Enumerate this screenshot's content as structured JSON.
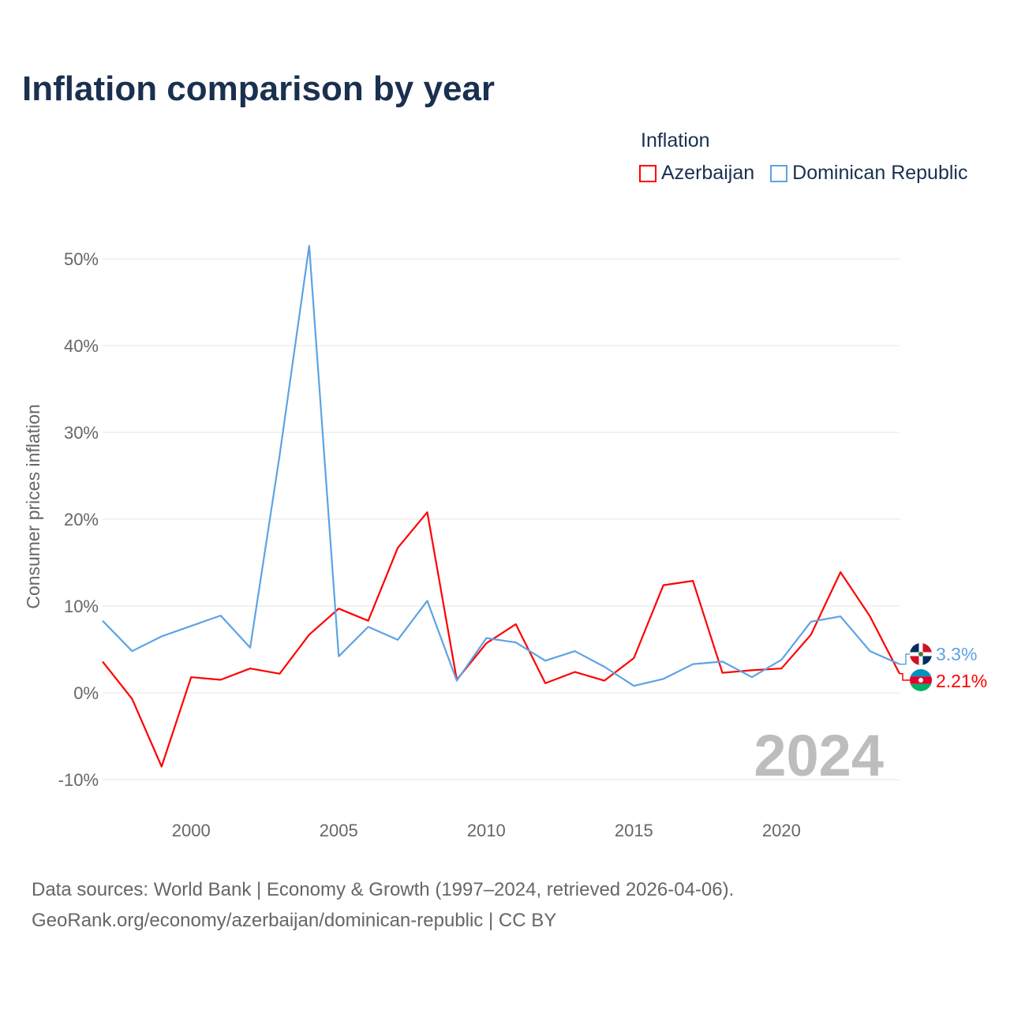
{
  "chart_data": {
    "type": "line",
    "title": "Inflation comparison by year",
    "ylabel": "Consumer prices inflation",
    "xlabel": "",
    "legend_title": "Inflation",
    "legend_position": "top-right",
    "x": [
      1997,
      1998,
      1999,
      2000,
      2001,
      2002,
      2003,
      2004,
      2005,
      2006,
      2007,
      2008,
      2009,
      2010,
      2011,
      2012,
      2013,
      2014,
      2015,
      2016,
      2017,
      2018,
      2019,
      2020,
      2021,
      2022,
      2023,
      2024
    ],
    "xlim": [
      1997,
      2024
    ],
    "ylim": [
      -10,
      52
    ],
    "xticks": [
      2000,
      2005,
      2010,
      2015,
      2020
    ],
    "xtick_labels": [
      "2000",
      "2005",
      "2010",
      "2015",
      "2020"
    ],
    "yticks": [
      -10,
      0,
      10,
      20,
      30,
      40,
      50
    ],
    "ytick_labels": [
      "-10%",
      "0%",
      "10%",
      "20%",
      "30%",
      "40%",
      "50%"
    ],
    "grid": true,
    "watermark_year": "2024",
    "series": [
      {
        "name": "Azerbaijan",
        "color": "#ff0000",
        "end_label": "2.21%",
        "values": [
          3.6,
          -0.7,
          -8.5,
          1.8,
          1.5,
          2.8,
          2.2,
          6.7,
          9.7,
          8.3,
          16.7,
          20.8,
          1.5,
          5.7,
          7.9,
          1.1,
          2.4,
          1.4,
          4.0,
          12.4,
          12.9,
          2.3,
          2.6,
          2.8,
          6.7,
          13.9,
          8.8,
          2.21
        ]
      },
      {
        "name": "Dominican Republic",
        "color": "#5ca3e6",
        "end_label": "3.3%",
        "values": [
          8.3,
          4.8,
          6.5,
          7.7,
          8.9,
          5.2,
          27.4,
          51.5,
          4.2,
          7.6,
          6.1,
          10.6,
          1.4,
          6.3,
          5.8,
          3.7,
          4.8,
          3.0,
          0.8,
          1.6,
          3.3,
          3.6,
          1.8,
          3.8,
          8.2,
          8.8,
          4.8,
          3.3
        ]
      }
    ]
  },
  "footer": {
    "line1": "Data sources: World Bank | Economy & Growth (1997–2024, retrieved 2026-04-06).",
    "line2": "GeoRank.org/economy/azerbaijan/dominican-republic | CC BY"
  }
}
